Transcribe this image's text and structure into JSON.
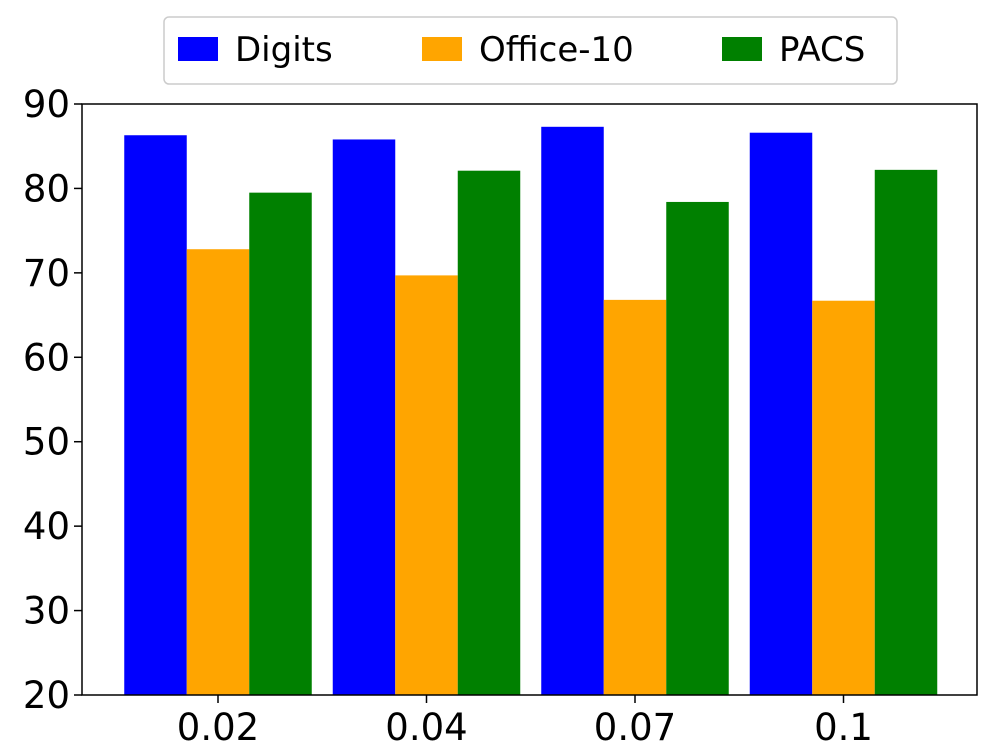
{
  "chart_data": {
    "type": "bar",
    "title": "",
    "xlabel": "",
    "ylabel": "",
    "categories": [
      "0.02",
      "0.04",
      "0.07",
      "0.1"
    ],
    "series": [
      {
        "name": "Digits",
        "color": "#0000ff",
        "values": [
          86.3,
          85.8,
          87.3,
          86.6
        ]
      },
      {
        "name": "Office-10",
        "color": "#ffa500",
        "values": [
          72.8,
          69.7,
          66.8,
          66.7
        ]
      },
      {
        "name": "PACS",
        "color": "#008000",
        "values": [
          79.5,
          82.1,
          78.4,
          82.2
        ]
      }
    ],
    "ylim": [
      20,
      90
    ],
    "yticks": [
      "20",
      "30",
      "40",
      "50",
      "60",
      "70",
      "80",
      "90"
    ],
    "grid": false,
    "legend": "top-center-outside"
  }
}
